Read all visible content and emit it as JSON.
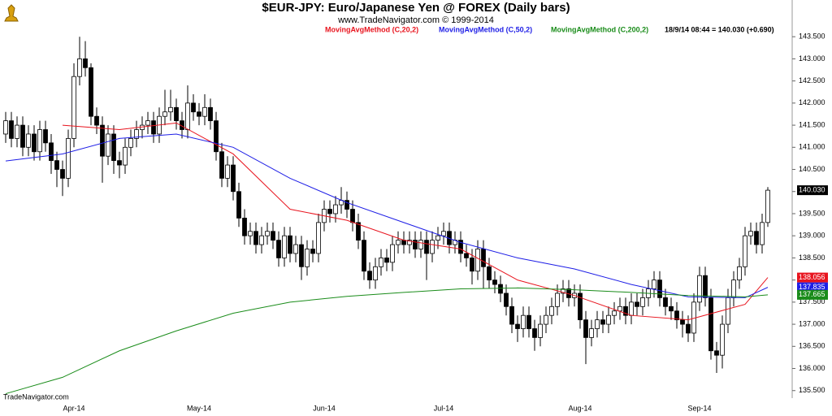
{
  "chart_data": {
    "type": "candlestick",
    "title": "$EUR-JPY:  Euro/Japanese Yen @ FOREX  (Daily bars)",
    "subtitle": "www.TradeNavigator.com © 1999-2014",
    "info": "18/9/14 08:44 = 140.030 (+0.690)",
    "watermark": "TradeNavigator.com",
    "ylim": [
      135.33,
      144.33
    ],
    "yticks": [
      {
        "value": 135.5,
        "label": "135.500"
      },
      {
        "value": 136,
        "label": "136.000"
      },
      {
        "value": 136.5,
        "label": "136.500"
      },
      {
        "value": 137,
        "label": "137.000"
      },
      {
        "value": 137.5,
        "label": "137.500"
      },
      {
        "value": 138,
        "label": "138.000"
      },
      {
        "value": 138.5,
        "label": "138.500"
      },
      {
        "value": 139,
        "label": "139.000"
      },
      {
        "value": 139.5,
        "label": "139.500"
      },
      {
        "value": 140,
        "label": "140.000"
      },
      {
        "value": 140.5,
        "label": "140.500"
      },
      {
        "value": 141,
        "label": "141.000"
      },
      {
        "value": 141.5,
        "label": "141.500"
      },
      {
        "value": 142,
        "label": "142.000"
      },
      {
        "value": 142.5,
        "label": "142.500"
      },
      {
        "value": 143,
        "label": "143.000"
      },
      {
        "value": 143.5,
        "label": "143.500"
      }
    ],
    "categories": [
      null,
      null,
      null,
      null,
      null,
      null,
      null,
      null,
      null,
      null,
      null,
      null,
      "Apr-14",
      null,
      null,
      null,
      null,
      null,
      null,
      null,
      null,
      null,
      null,
      null,
      null,
      null,
      null,
      null,
      null,
      null,
      null,
      null,
      null,
      null,
      "May-14",
      null,
      null,
      null,
      null,
      null,
      null,
      null,
      null,
      null,
      null,
      null,
      null,
      null,
      null,
      null,
      null,
      null,
      null,
      null,
      null,
      null,
      "Jun-14",
      null,
      null,
      null,
      null,
      null,
      null,
      null,
      null,
      null,
      null,
      null,
      null,
      null,
      null,
      null,
      null,
      null,
      null,
      null,
      null,
      "Jul-14",
      null,
      null,
      null,
      null,
      null,
      null,
      null,
      null,
      null,
      null,
      null,
      null,
      null,
      null,
      null,
      null,
      null,
      null,
      null,
      null,
      null,
      null,
      null,
      "Aug-14",
      null,
      null,
      null,
      null,
      null,
      null,
      null,
      null,
      null,
      null,
      null,
      null,
      null,
      null,
      null,
      null,
      null,
      null,
      null,
      null,
      "Sep-14",
      null,
      null,
      null,
      null,
      null,
      null,
      null,
      null,
      null,
      null,
      null,
      null
    ],
    "candles": {
      "up_color": "#ffffff",
      "down_color": "#000000",
      "last_label": "140.030",
      "open": [
        141.3,
        141.6,
        141.2,
        141.5,
        141.0,
        141.3,
        140.9,
        141.4,
        141.1,
        140.7,
        140.5,
        140.3,
        141.2,
        142.6,
        143.0,
        142.8,
        141.7,
        141.5,
        140.8,
        141.3,
        140.7,
        140.6,
        141.0,
        141.2,
        141.4,
        141.5,
        141.6,
        141.3,
        141.7,
        141.8,
        141.9,
        141.6,
        141.4,
        142.0,
        141.8,
        141.7,
        141.9,
        141.6,
        140.9,
        140.3,
        140.6,
        140.0,
        139.4,
        139.0,
        139.1,
        138.8,
        139.0,
        139.1,
        138.9,
        138.5,
        139.0,
        138.6,
        138.8,
        138.3,
        138.7,
        138.6,
        139.3,
        139.6,
        139.5,
        139.7,
        139.8,
        139.6,
        139.3,
        138.9,
        138.2,
        138.0,
        138.3,
        138.5,
        138.4,
        138.8,
        138.9,
        138.8,
        138.9,
        138.7,
        138.9,
        138.6,
        138.9,
        139.0,
        139.1,
        138.8,
        138.9,
        138.6,
        138.5,
        138.2,
        138.7,
        138.3,
        138.0,
        137.9,
        137.7,
        137.4,
        137.0,
        136.9,
        137.2,
        136.9,
        136.7,
        137.0,
        137.2,
        137.4,
        137.7,
        137.8,
        137.6,
        137.7,
        137.1,
        136.7,
        136.9,
        137.1,
        137.0,
        137.2,
        137.3,
        137.4,
        137.2,
        137.5,
        137.4,
        137.6,
        137.8,
        138.0,
        137.6,
        137.4,
        137.3,
        137.1,
        137.0,
        136.8,
        137.5,
        138.1,
        137.6,
        136.4,
        136.3,
        137.0,
        137.6,
        138.0,
        138.3,
        139.0,
        139.1,
        138.8,
        139.3
      ],
      "high": [
        141.8,
        141.8,
        141.7,
        141.7,
        141.5,
        141.5,
        141.6,
        141.6,
        141.3,
        140.9,
        140.7,
        141.4,
        142.9,
        143.5,
        143.4,
        142.9,
        141.9,
        141.7,
        141.5,
        141.5,
        140.9,
        141.2,
        141.4,
        141.6,
        141.7,
        141.8,
        141.8,
        141.9,
        142.3,
        142.3,
        142.1,
        141.8,
        142.4,
        142.2,
        142.0,
        142.2,
        142.1,
        141.8,
        141.1,
        140.8,
        140.8,
        140.2,
        139.6,
        139.3,
        139.3,
        139.2,
        139.3,
        139.3,
        139.1,
        139.2,
        139.2,
        139.0,
        139.0,
        138.9,
        138.9,
        139.5,
        139.8,
        139.8,
        139.9,
        140.1,
        140.0,
        139.8,
        139.5,
        139.1,
        138.4,
        138.5,
        138.7,
        138.7,
        139.0,
        139.1,
        139.1,
        139.1,
        139.1,
        139.1,
        139.1,
        139.1,
        139.2,
        139.3,
        139.3,
        139.1,
        139.1,
        138.8,
        138.7,
        138.9,
        138.9,
        138.5,
        138.2,
        138.1,
        137.9,
        137.6,
        137.2,
        137.4,
        137.4,
        137.1,
        137.2,
        137.4,
        137.6,
        137.9,
        138.0,
        138.0,
        137.9,
        137.9,
        137.3,
        137.1,
        137.3,
        137.3,
        137.4,
        137.5,
        137.6,
        137.6,
        137.7,
        137.7,
        137.8,
        138.0,
        138.2,
        138.2,
        137.8,
        137.6,
        137.5,
        137.3,
        137.2,
        137.7,
        138.3,
        138.3,
        137.8,
        136.6,
        137.2,
        137.8,
        138.2,
        138.5,
        139.2,
        139.3,
        139.3,
        139.5,
        140.1
      ],
      "low": [
        141.1,
        141.0,
        141.0,
        140.8,
        140.8,
        140.7,
        140.7,
        140.9,
        140.4,
        140.1,
        139.9,
        140.1,
        141.0,
        142.4,
        142.6,
        141.5,
        141.3,
        140.2,
        140.6,
        140.4,
        140.3,
        140.4,
        140.8,
        141.0,
        141.2,
        141.3,
        141.1,
        141.1,
        141.5,
        141.6,
        141.4,
        141.2,
        141.2,
        141.6,
        141.5,
        141.5,
        141.4,
        140.7,
        140.1,
        140.1,
        139.8,
        139.2,
        138.8,
        138.8,
        138.6,
        138.6,
        138.8,
        138.7,
        138.3,
        138.3,
        138.4,
        138.4,
        138.0,
        138.1,
        138.4,
        138.4,
        139.1,
        139.3,
        139.3,
        139.5,
        139.4,
        139.1,
        138.7,
        138.0,
        137.8,
        137.8,
        138.1,
        138.2,
        138.2,
        138.6,
        138.6,
        138.6,
        138.5,
        138.5,
        138.0,
        138.4,
        138.7,
        138.8,
        138.6,
        138.6,
        138.4,
        138.3,
        137.9,
        138.0,
        137.8,
        137.8,
        137.7,
        137.5,
        137.2,
        136.8,
        136.6,
        136.7,
        136.7,
        136.4,
        136.5,
        136.8,
        137.0,
        137.2,
        137.5,
        137.4,
        137.4,
        136.9,
        136.1,
        136.5,
        136.7,
        136.8,
        136.8,
        137.0,
        137.1,
        137.0,
        137.0,
        137.2,
        137.2,
        137.4,
        137.6,
        137.4,
        137.2,
        137.1,
        136.9,
        136.7,
        136.6,
        136.6,
        137.3,
        137.4,
        136.2,
        135.9,
        136.0,
        136.8,
        137.4,
        137.8,
        138.1,
        138.8,
        138.6,
        138.6,
        139.2
      ],
      "close": [
        141.6,
        141.2,
        141.5,
        141.0,
        141.3,
        140.9,
        141.4,
        141.1,
        140.7,
        140.5,
        140.3,
        141.2,
        142.6,
        143.0,
        142.8,
        141.7,
        141.5,
        140.8,
        141.3,
        140.7,
        140.6,
        141.0,
        141.2,
        141.4,
        141.5,
        141.6,
        141.3,
        141.7,
        141.8,
        141.9,
        141.6,
        141.4,
        142.0,
        141.8,
        141.7,
        141.9,
        141.6,
        140.9,
        140.3,
        140.6,
        140.0,
        139.4,
        139.0,
        139.1,
        138.8,
        139.0,
        139.1,
        138.9,
        138.5,
        139.0,
        138.6,
        138.8,
        138.3,
        138.7,
        138.6,
        139.3,
        139.6,
        139.5,
        139.7,
        139.8,
        139.6,
        139.3,
        138.9,
        138.2,
        138.0,
        138.3,
        138.5,
        138.4,
        138.8,
        138.9,
        138.8,
        138.9,
        138.7,
        138.9,
        138.6,
        138.9,
        139.0,
        139.1,
        138.8,
        138.9,
        138.6,
        138.5,
        138.2,
        138.7,
        138.3,
        138.0,
        137.9,
        137.7,
        137.4,
        137.0,
        136.9,
        137.2,
        136.9,
        136.7,
        137.0,
        137.2,
        137.4,
        137.7,
        137.8,
        137.6,
        137.7,
        137.1,
        136.7,
        136.9,
        137.1,
        137.0,
        137.2,
        137.3,
        137.4,
        137.2,
        137.5,
        137.4,
        137.6,
        137.8,
        138.0,
        137.6,
        137.4,
        137.3,
        137.1,
        137.0,
        136.8,
        137.5,
        138.1,
        137.6,
        136.4,
        136.3,
        137.0,
        137.6,
        138.0,
        138.3,
        139.0,
        139.1,
        138.8,
        139.3,
        140.03
      ]
    },
    "series": [
      {
        "name": "MovingAvgMethod (C,20,2)",
        "color": "#e8141e",
        "last_label": "138.056",
        "x": [
          10,
          20,
          30,
          40,
          50,
          60,
          70,
          80,
          90,
          100,
          110,
          120,
          130,
          134
        ],
        "values": [
          141.5,
          141.4,
          141.55,
          140.85,
          139.6,
          139.35,
          138.9,
          138.7,
          138.0,
          137.65,
          137.2,
          137.1,
          137.45,
          138.056
        ]
      },
      {
        "name": "MovingAvgMethod (C,50,2)",
        "color": "#1e1ee6",
        "last_label": "137.835",
        "x": [
          0,
          10,
          20,
          30,
          40,
          50,
          60,
          70,
          80,
          90,
          100,
          110,
          120,
          130,
          134
        ],
        "values": [
          140.69,
          140.85,
          141.2,
          141.3,
          141.0,
          140.3,
          139.75,
          139.3,
          138.85,
          138.5,
          138.25,
          137.9,
          137.62,
          137.6,
          137.835
        ]
      },
      {
        "name": "MovingAvgMethod (C,200,2)",
        "color": "#1a8c1a",
        "last_label": "137.665",
        "x": [
          0,
          10,
          20,
          30,
          40,
          50,
          60,
          70,
          80,
          90,
          100,
          110,
          120,
          130,
          134
        ],
        "values": [
          135.43,
          135.8,
          136.4,
          136.85,
          137.25,
          137.5,
          137.63,
          137.72,
          137.8,
          137.82,
          137.78,
          137.72,
          137.65,
          137.62,
          137.665
        ]
      }
    ]
  }
}
